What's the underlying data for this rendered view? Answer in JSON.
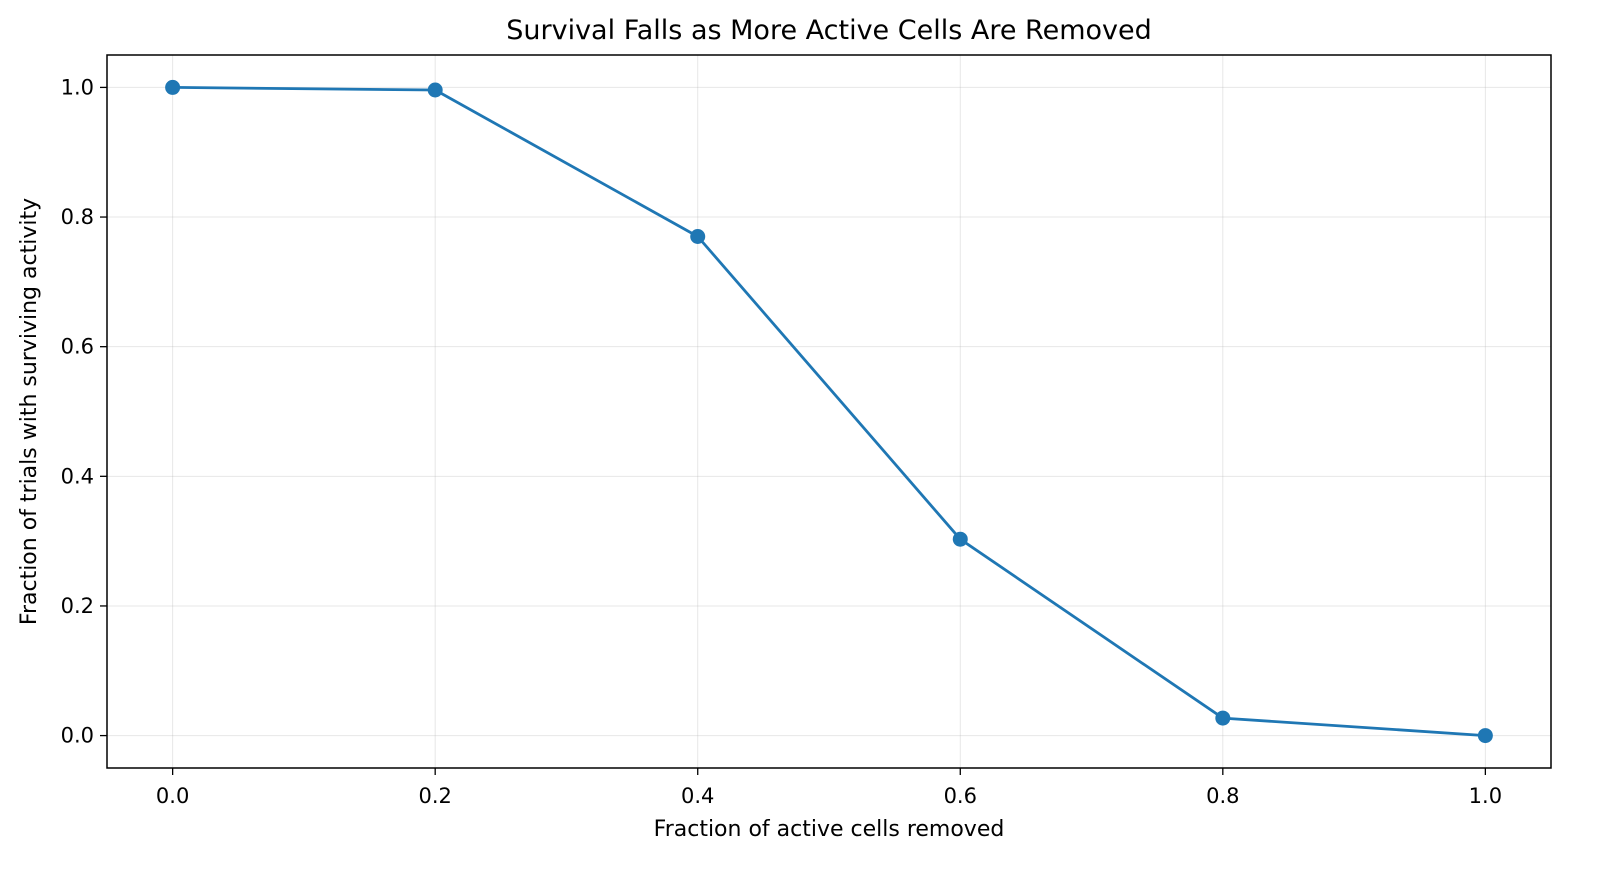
{
  "chart_data": {
    "type": "line",
    "title": "Survival Falls as More Active Cells Are Removed",
    "xlabel": "Fraction of active cells removed",
    "ylabel": "Fraction of trials with surviving activity",
    "xlim": [
      -0.05,
      1.05
    ],
    "ylim": [
      -0.05,
      1.05
    ],
    "xticks": [
      0.0,
      0.2,
      0.4,
      0.6,
      0.8,
      1.0
    ],
    "xtick_labels": [
      "0.0",
      "0.2",
      "0.4",
      "0.6",
      "0.8",
      "1.0"
    ],
    "yticks": [
      0.0,
      0.2,
      0.4,
      0.6,
      0.8,
      1.0
    ],
    "ytick_labels": [
      "0.0",
      "0.2",
      "0.4",
      "0.6",
      "0.8",
      "1.0"
    ],
    "grid": true,
    "series": [
      {
        "color": "#1f77b4",
        "marker": "circle",
        "x": [
          0.0,
          0.2,
          0.4,
          0.6,
          0.8,
          1.0
        ],
        "y": [
          1.0,
          0.996,
          0.77,
          0.303,
          0.027,
          0.0
        ]
      }
    ]
  }
}
